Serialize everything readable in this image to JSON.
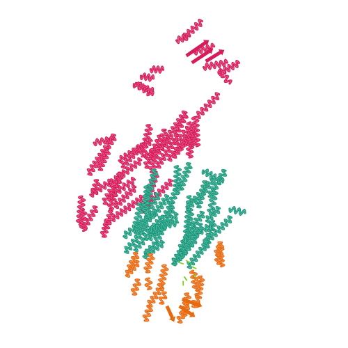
{
  "image": {
    "subject": "protein-structure-ribbon",
    "background": "#ffffff",
    "chains": [
      {
        "name": "chain-a",
        "color": "#d81b5a"
      },
      {
        "name": "chain-b",
        "color": "#1a9a7c"
      },
      {
        "name": "chain-c",
        "color": "#e86a10"
      },
      {
        "name": "ligand",
        "color": "#7ed321"
      }
    ]
  }
}
